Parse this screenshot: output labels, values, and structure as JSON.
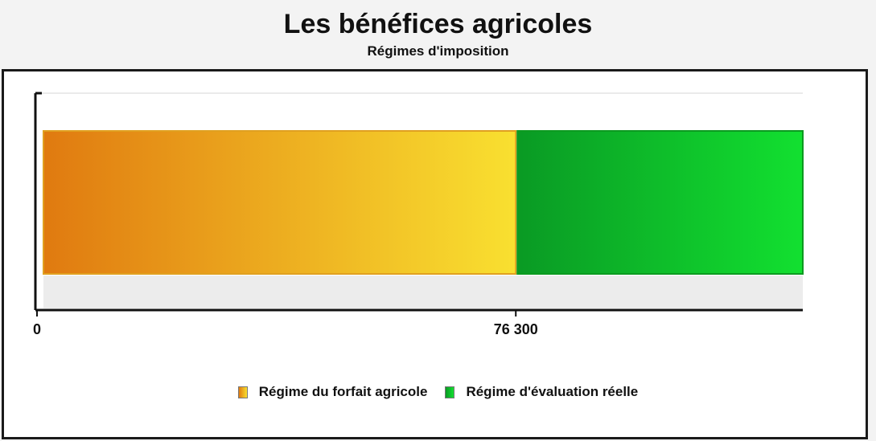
{
  "chart_data": {
    "type": "bar",
    "orientation": "horizontal",
    "stacked": true,
    "title": "Les bénéfices agricoles",
    "subtitle": "Régimes d'imposition",
    "xlabel": "",
    "ylabel": "",
    "xlim": [
      0,
      122500
    ],
    "x_ticks": [
      {
        "value": 0,
        "label": "0"
      },
      {
        "value": 76300,
        "label": "76 300"
      }
    ],
    "grid": false,
    "legend_position": "bottom",
    "series": [
      {
        "name": "Régime du forfait agricole",
        "start": 0,
        "end": 76300,
        "color_from": "#e07a10",
        "color_to": "#f9e030"
      },
      {
        "name": "Régime d'évaluation réelle",
        "start": 76300,
        "end": 122500,
        "color_from": "#0a9a24",
        "color_to": "#12e030"
      }
    ]
  }
}
